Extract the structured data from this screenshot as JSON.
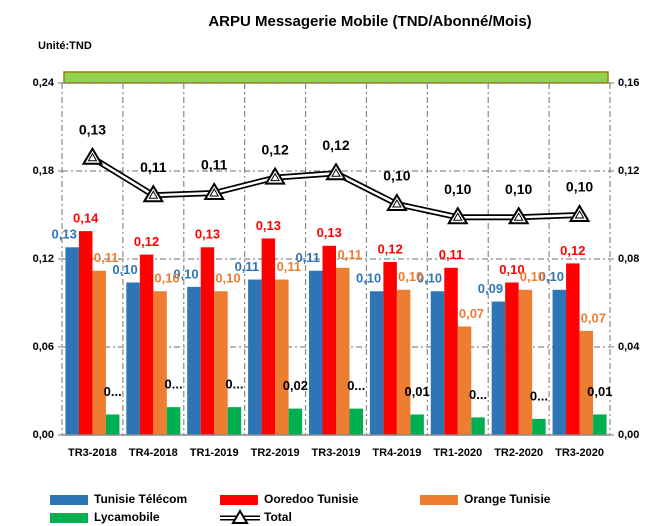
{
  "chart_data": {
    "type": "bar",
    "title": "ARPU Messagerie Mobile (TND/Abonné/Mois)",
    "y_label": "Unité:TND",
    "categories": [
      "TR3-2018",
      "TR4-2018",
      "TR1-2019",
      "TR2-2019",
      "TR3-2019",
      "TR4-2019",
      "TR1-2020",
      "TR2-2020",
      "TR3-2020"
    ],
    "series": [
      {
        "name": "Tunisie Télécom",
        "color": "#2e75b6",
        "values": [
          0.128,
          0.104,
          0.101,
          0.106,
          0.112,
          0.098,
          0.098,
          0.091,
          0.099
        ],
        "value_labels": [
          "0,13",
          "0,10",
          "0,10",
          "0,11",
          "0,11",
          "0,10",
          "0,10",
          "0,09",
          "0,10"
        ]
      },
      {
        "name": "Ooredoo Tunisie",
        "color": "#ff0000",
        "values": [
          0.139,
          0.123,
          0.128,
          0.134,
          0.129,
          0.118,
          0.114,
          0.104,
          0.117
        ],
        "value_labels": [
          "0,14",
          "0,12",
          "0,13",
          "0,13",
          "0,13",
          "0,12",
          "0,11",
          "0,10",
          "0,12"
        ]
      },
      {
        "name": "Orange Tunisie",
        "color": "#ed7d31",
        "values": [
          0.112,
          0.098,
          0.098,
          0.106,
          0.114,
          0.099,
          0.074,
          0.099,
          0.071
        ],
        "value_labels": [
          "0,11",
          "0,10",
          "0,10",
          "0,11",
          "0,11",
          "0,10",
          "0,07",
          "0,10",
          "0,07"
        ]
      },
      {
        "name": "Lycamobile",
        "color": "#00b050",
        "values": [
          0.014,
          0.019,
          0.019,
          0.018,
          0.018,
          0.014,
          0.012,
          0.011,
          0.014
        ],
        "value_labels": [
          "0...",
          "0...",
          "0...",
          "0,02",
          "0...",
          "0,01",
          "0...",
          "0...",
          "0,01"
        ]
      },
      {
        "name": "Total",
        "type": "line",
        "axis": "y2",
        "color": "#000000",
        "values": [
          0.126,
          0.109,
          0.11,
          0.117,
          0.119,
          0.105,
          0.099,
          0.099,
          0.1
        ],
        "value_labels": [
          "0,13",
          "0,11",
          "0,11",
          "0,12",
          "0,12",
          "0,10",
          "0,10",
          "0,10",
          "0,10"
        ]
      }
    ],
    "ylim": [
      0,
      0.24
    ],
    "yticks": [
      {
        "value": 0,
        "label": "0,00"
      },
      {
        "value": 0.06,
        "label": "0,06"
      },
      {
        "value": 0.12,
        "label": "0,12"
      },
      {
        "value": 0.18,
        "label": "0,18"
      },
      {
        "value": 0.24,
        "label": "0,24"
      }
    ],
    "y2lim": [
      0,
      0.16
    ],
    "y2ticks": [
      {
        "value": 0,
        "label": "0,00"
      },
      {
        "value": 0.04,
        "label": "0,04"
      },
      {
        "value": 0.08,
        "label": "0,08"
      },
      {
        "value": 0.12,
        "label": "0,12"
      },
      {
        "value": 0.16,
        "label": "0,16"
      }
    ],
    "grid": true,
    "legend": "bottom"
  }
}
